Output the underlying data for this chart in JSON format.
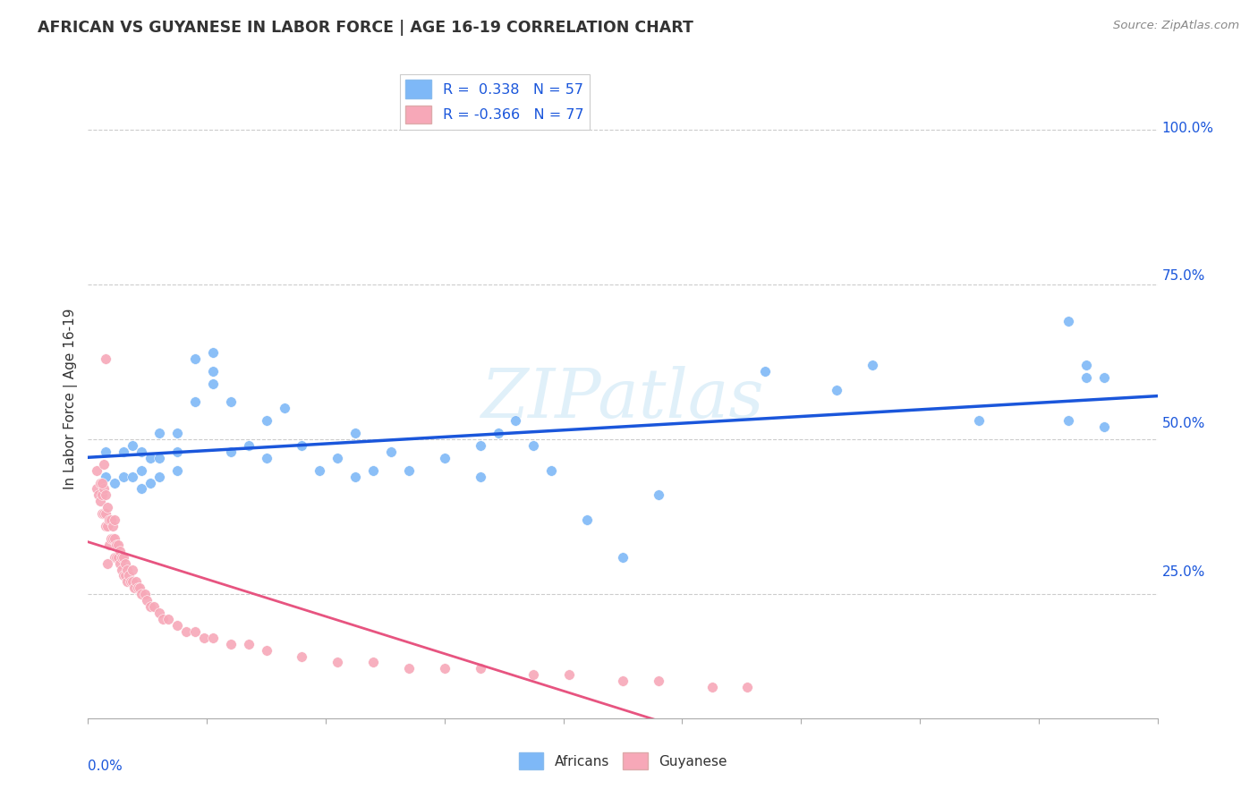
{
  "title": "AFRICAN VS GUYANESE IN LABOR FORCE | AGE 16-19 CORRELATION CHART",
  "source": "Source: ZipAtlas.com",
  "ylabel": "In Labor Force | Age 16-19",
  "xlim": [
    0.0,
    0.6
  ],
  "ylim": [
    0.05,
    1.08
  ],
  "africans_color": "#7eb8f7",
  "guyanese_color": "#f7a8b8",
  "trend_african_color": "#1a56db",
  "trend_guyanese_color": "#e75480",
  "watermark": "ZIPatlas",
  "africans_label": "R =  0.338   N = 57",
  "guyanese_label": "R = -0.366   N = 77",
  "africans_bottom_label": "Africans",
  "guyanese_bottom_label": "Guyanese",
  "ytick_labels": [
    "",
    "25.0%",
    "50.0%",
    "75.0%",
    "100.0%"
  ],
  "africans_x": [
    0.01,
    0.01,
    0.015,
    0.02,
    0.02,
    0.025,
    0.025,
    0.03,
    0.03,
    0.03,
    0.035,
    0.035,
    0.04,
    0.04,
    0.04,
    0.05,
    0.05,
    0.05,
    0.06,
    0.06,
    0.07,
    0.07,
    0.07,
    0.08,
    0.08,
    0.09,
    0.1,
    0.1,
    0.11,
    0.12,
    0.13,
    0.14,
    0.15,
    0.15,
    0.16,
    0.17,
    0.18,
    0.2,
    0.22,
    0.22,
    0.23,
    0.24,
    0.25,
    0.26,
    0.28,
    0.3,
    0.32,
    0.38,
    0.42,
    0.44,
    0.5,
    0.55,
    0.55,
    0.56,
    0.56,
    0.57,
    0.57
  ],
  "africans_y": [
    0.44,
    0.48,
    0.43,
    0.44,
    0.48,
    0.44,
    0.49,
    0.42,
    0.45,
    0.48,
    0.43,
    0.47,
    0.44,
    0.47,
    0.51,
    0.45,
    0.48,
    0.51,
    0.56,
    0.63,
    0.59,
    0.61,
    0.64,
    0.48,
    0.56,
    0.49,
    0.47,
    0.53,
    0.55,
    0.49,
    0.45,
    0.47,
    0.44,
    0.51,
    0.45,
    0.48,
    0.45,
    0.47,
    0.44,
    0.49,
    0.51,
    0.53,
    0.49,
    0.45,
    0.37,
    0.31,
    0.41,
    0.61,
    0.58,
    0.62,
    0.53,
    0.69,
    0.53,
    0.6,
    0.62,
    0.6,
    0.52
  ],
  "guyanese_x": [
    0.005,
    0.005,
    0.006,
    0.007,
    0.007,
    0.008,
    0.008,
    0.009,
    0.009,
    0.01,
    0.01,
    0.01,
    0.011,
    0.011,
    0.012,
    0.012,
    0.013,
    0.013,
    0.014,
    0.014,
    0.015,
    0.015,
    0.015,
    0.016,
    0.016,
    0.017,
    0.017,
    0.018,
    0.018,
    0.019,
    0.019,
    0.02,
    0.02,
    0.021,
    0.021,
    0.022,
    0.022,
    0.023,
    0.024,
    0.025,
    0.025,
    0.026,
    0.027,
    0.028,
    0.029,
    0.03,
    0.032,
    0.033,
    0.035,
    0.037,
    0.04,
    0.042,
    0.045,
    0.05,
    0.055,
    0.06,
    0.065,
    0.07,
    0.08,
    0.09,
    0.1,
    0.12,
    0.14,
    0.16,
    0.18,
    0.2,
    0.22,
    0.25,
    0.27,
    0.3,
    0.32,
    0.35,
    0.37,
    0.008,
    0.009,
    0.01,
    0.011
  ],
  "guyanese_y": [
    0.42,
    0.45,
    0.41,
    0.4,
    0.43,
    0.38,
    0.41,
    0.38,
    0.42,
    0.36,
    0.38,
    0.41,
    0.36,
    0.39,
    0.33,
    0.37,
    0.34,
    0.37,
    0.34,
    0.36,
    0.31,
    0.34,
    0.37,
    0.31,
    0.33,
    0.31,
    0.33,
    0.3,
    0.32,
    0.29,
    0.31,
    0.28,
    0.31,
    0.28,
    0.3,
    0.27,
    0.29,
    0.28,
    0.27,
    0.27,
    0.29,
    0.26,
    0.27,
    0.26,
    0.26,
    0.25,
    0.25,
    0.24,
    0.23,
    0.23,
    0.22,
    0.21,
    0.21,
    0.2,
    0.19,
    0.19,
    0.18,
    0.18,
    0.17,
    0.17,
    0.16,
    0.15,
    0.14,
    0.14,
    0.13,
    0.13,
    0.13,
    0.12,
    0.12,
    0.11,
    0.11,
    0.1,
    0.1,
    0.43,
    0.46,
    0.63,
    0.3
  ]
}
